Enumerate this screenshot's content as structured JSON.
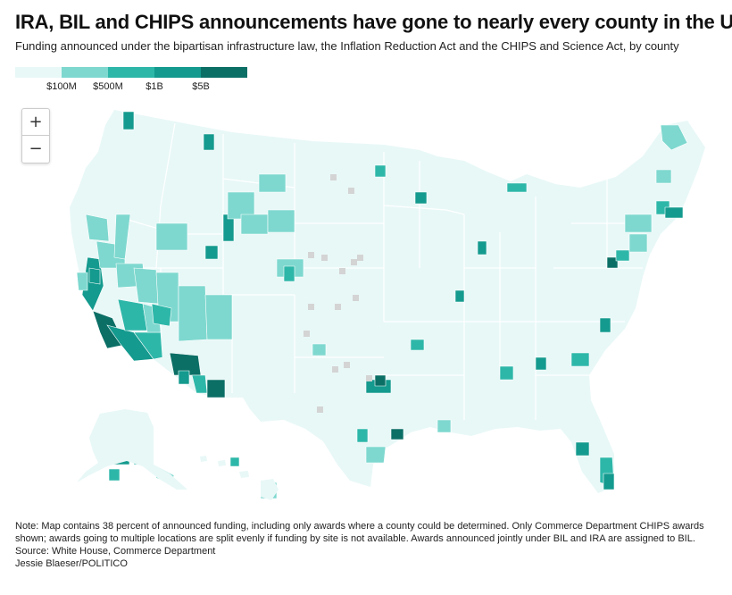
{
  "title": "IRA, BIL and CHIPS announcements have gone to nearly every county in the U.S.",
  "subtitle": "Funding announced under the bipartisan infrastructure law, the Inflation Reduction Act and the CHIPS and Science Act, by county",
  "legend": {
    "bins": [
      {
        "color": "#e8f8f7"
      },
      {
        "color": "#7ed8cf"
      },
      {
        "color": "#2db7a9"
      },
      {
        "color": "#149a8e"
      },
      {
        "color": "#0b6f66"
      }
    ],
    "labels": [
      "$100M",
      "$500M",
      "$1B",
      "$5B"
    ]
  },
  "zoom": {
    "in_label": "+",
    "out_label": "−"
  },
  "colors": {
    "base": "#e8f8f7",
    "low": "#7ed8cf",
    "mid": "#2db7a9",
    "high": "#149a8e",
    "top": "#0b6f66",
    "nodata": "#d4d4d4",
    "state_border": "#ffffff"
  },
  "notes": {
    "note": "Note: Map contains 38 percent of announced funding, including only awards where a county could be determined. Only Commerce Department CHIPS awards shown; awards going to multiple locations are split evenly if funding by site is not available. Awards announced jointly under BIL and IRA are assigned to BIL.",
    "source": "Source: White House, Commerce Department",
    "credit": "Jessie Blaeser/POLITICO"
  }
}
